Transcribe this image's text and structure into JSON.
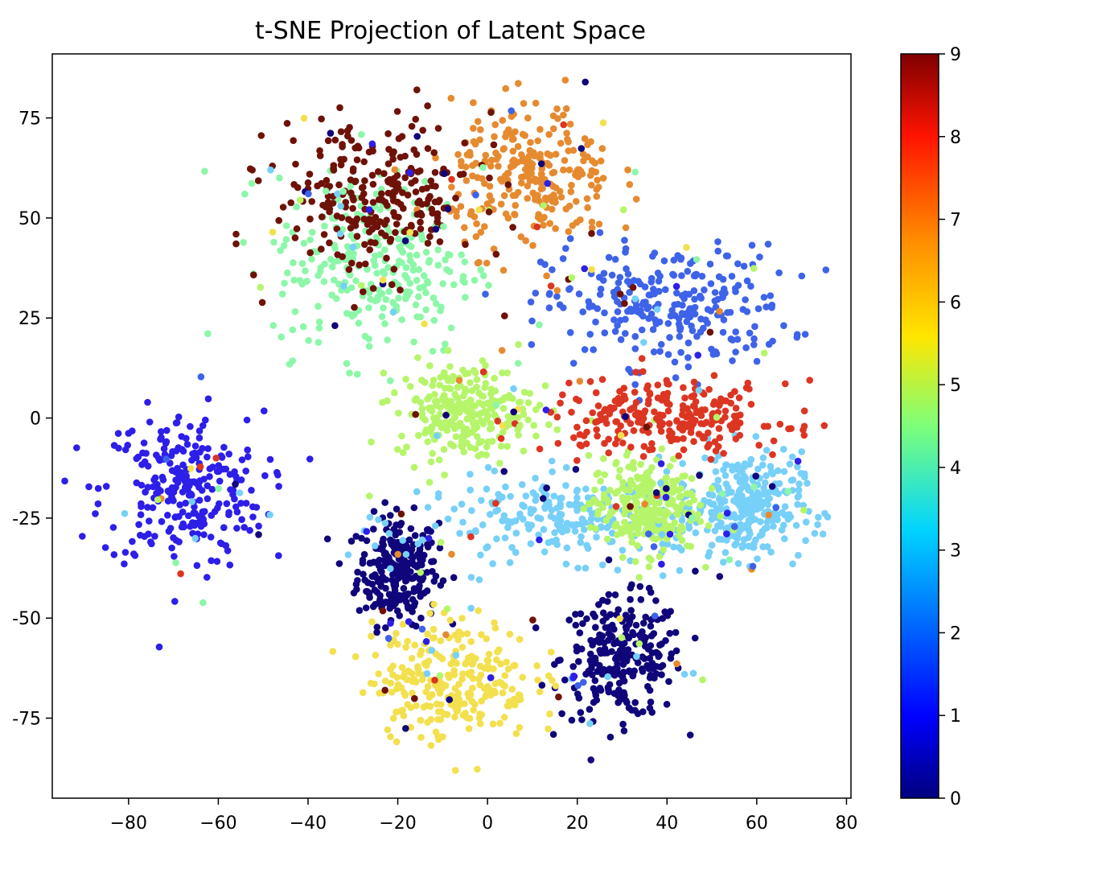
{
  "chart_data": {
    "type": "scatter",
    "title": "t-SNE Projection of Latent Space",
    "xlabel": "",
    "ylabel": "",
    "xlim": [
      -97,
      81
    ],
    "ylim": [
      -95,
      91
    ],
    "x_ticks": [
      -80,
      -60,
      -40,
      -20,
      0,
      20,
      40,
      60,
      80
    ],
    "x_tick_labels": [
      "−80",
      "−60",
      "−40",
      "−20",
      "0",
      "20",
      "40",
      "60",
      "80"
    ],
    "y_ticks": [
      -75,
      -50,
      -25,
      0,
      25,
      50,
      75
    ],
    "y_tick_labels": [
      "-75",
      "-50",
      "-25",
      "0",
      "25",
      "50",
      "75"
    ],
    "grid": false,
    "colormap": "jet",
    "colorbar": {
      "range": [
        0,
        9
      ],
      "ticks": [
        0,
        1,
        2,
        3,
        4,
        5,
        6,
        7,
        8,
        9
      ],
      "tick_labels": [
        "0",
        "1",
        "2",
        "3",
        "4",
        "5",
        "6",
        "7",
        "8",
        "9"
      ]
    },
    "clusters": [
      {
        "label": 0,
        "color": "#10057a",
        "center": [
          -20,
          -38
        ],
        "spread": [
          6,
          9
        ]
      },
      {
        "label": 0,
        "color": "#10057a",
        "center": [
          30,
          -60
        ],
        "spread": [
          9,
          10
        ]
      },
      {
        "label": 1,
        "color": "#2d1ee8",
        "center": [
          -68,
          -18
        ],
        "spread": [
          12,
          13
        ]
      },
      {
        "label": 2,
        "color": "#3e63e8",
        "center": [
          40,
          28
        ],
        "spread": [
          18,
          10
        ]
      },
      {
        "label": 3,
        "color": "#77d0f8",
        "center": [
          22,
          -25
        ],
        "spread": [
          25,
          7
        ]
      },
      {
        "label": 3,
        "color": "#77d0f8",
        "center": [
          58,
          -22
        ],
        "spread": [
          8,
          9
        ]
      },
      {
        "label": 4,
        "color": "#8cf7a8",
        "center": [
          -25,
          38
        ],
        "spread": [
          15,
          15
        ]
      },
      {
        "label": 5,
        "color": "#b6f56a",
        "center": [
          -5,
          2
        ],
        "spread": [
          10,
          8
        ]
      },
      {
        "label": 5,
        "color": "#b6f56a",
        "center": [
          35,
          -22
        ],
        "spread": [
          8,
          8
        ]
      },
      {
        "label": 6,
        "color": "#f3e04e",
        "center": [
          -8,
          -65
        ],
        "spread": [
          12,
          10
        ]
      },
      {
        "label": 7,
        "color": "#e68a30",
        "center": [
          10,
          60
        ],
        "spread": [
          12,
          12
        ]
      },
      {
        "label": 8,
        "color": "#dc3623",
        "center": [
          40,
          0
        ],
        "spread": [
          18,
          6
        ]
      },
      {
        "label": 9,
        "color": "#6e1208",
        "center": [
          -25,
          55
        ],
        "spread": [
          15,
          13
        ]
      }
    ]
  }
}
